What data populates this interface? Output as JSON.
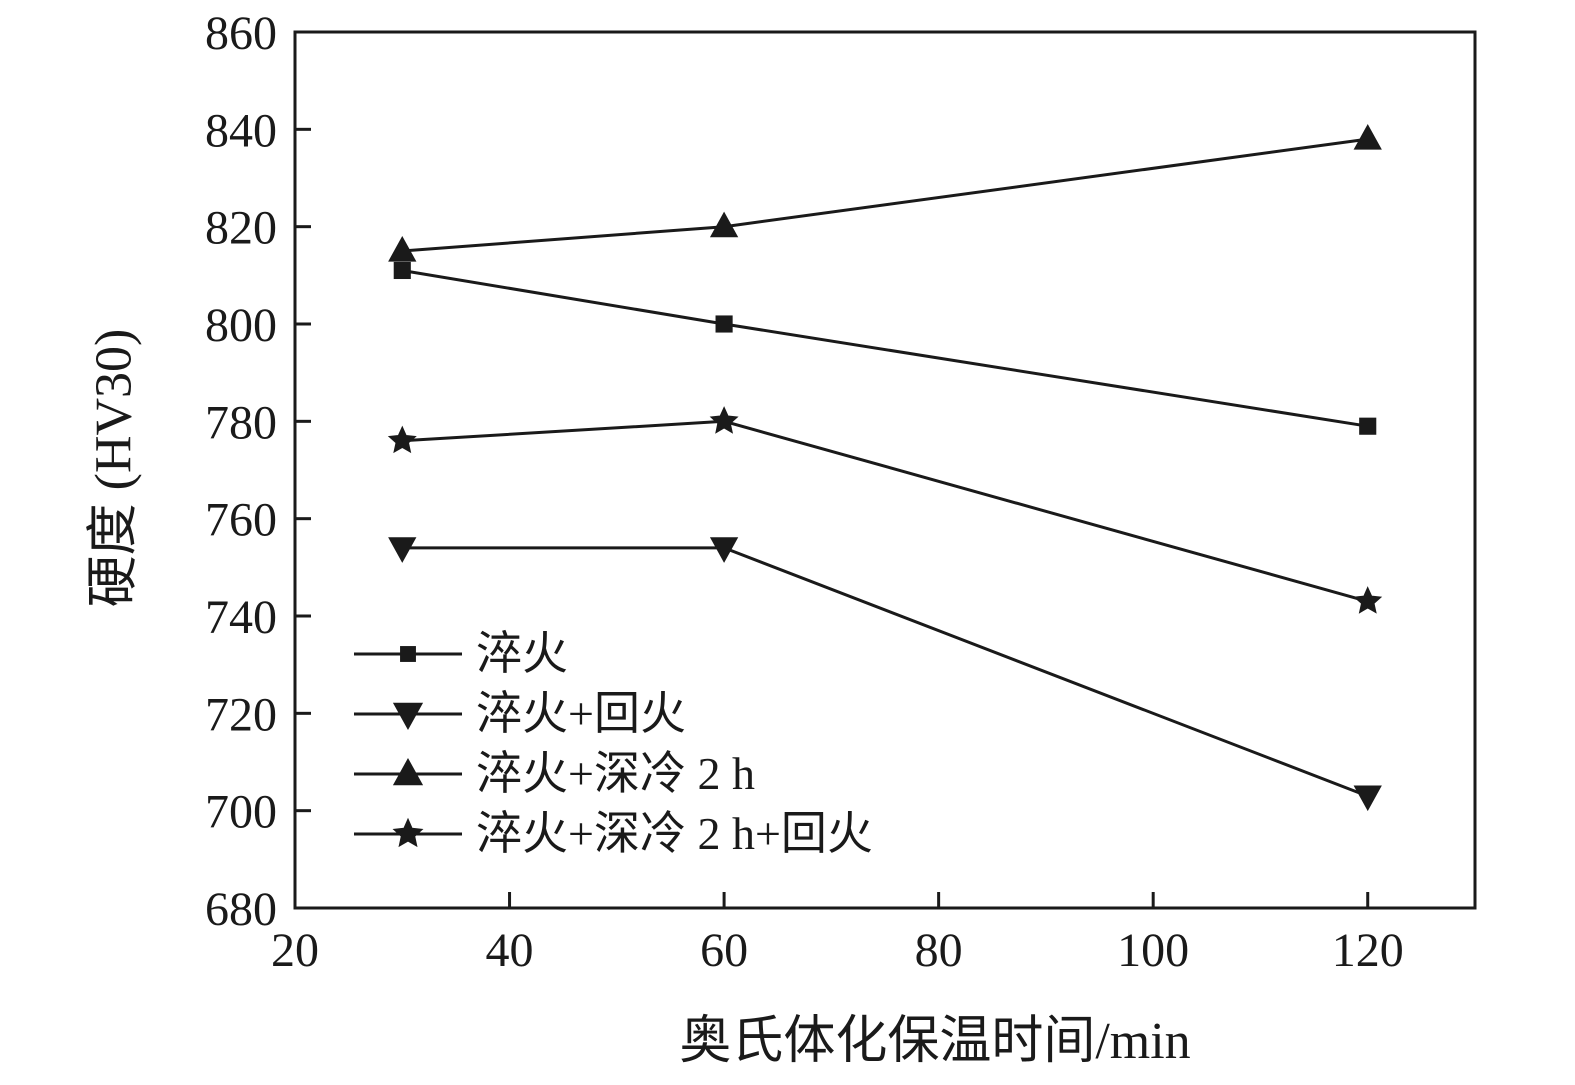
{
  "chart_data": {
    "type": "line",
    "x": [
      30,
      60,
      120
    ],
    "series": [
      {
        "name": "淬火",
        "marker": "square",
        "values": [
          811,
          800,
          779
        ]
      },
      {
        "name": "淬火+回火",
        "marker": "triangle-down",
        "values": [
          754,
          754,
          703
        ]
      },
      {
        "name": "淬火+深冷 2 h",
        "marker": "triangle-up",
        "values": [
          815,
          820,
          838
        ]
      },
      {
        "name": "淬火+深冷 2 h+回火",
        "marker": "star",
        "values": [
          776,
          780,
          743
        ]
      }
    ],
    "xlabel": "奥氏体化保温时间/min",
    "ylabel": "硬度 (HV30)",
    "xlim": [
      20,
      130
    ],
    "ylim": [
      680,
      860
    ],
    "xticks": [
      20,
      40,
      60,
      80,
      100,
      120
    ],
    "yticks": [
      680,
      700,
      720,
      740,
      760,
      780,
      800,
      820,
      840,
      860
    ],
    "grid": false,
    "legend_position": "lower-left",
    "line_color": "#1a1a1a",
    "background_color": "#ffffff"
  }
}
